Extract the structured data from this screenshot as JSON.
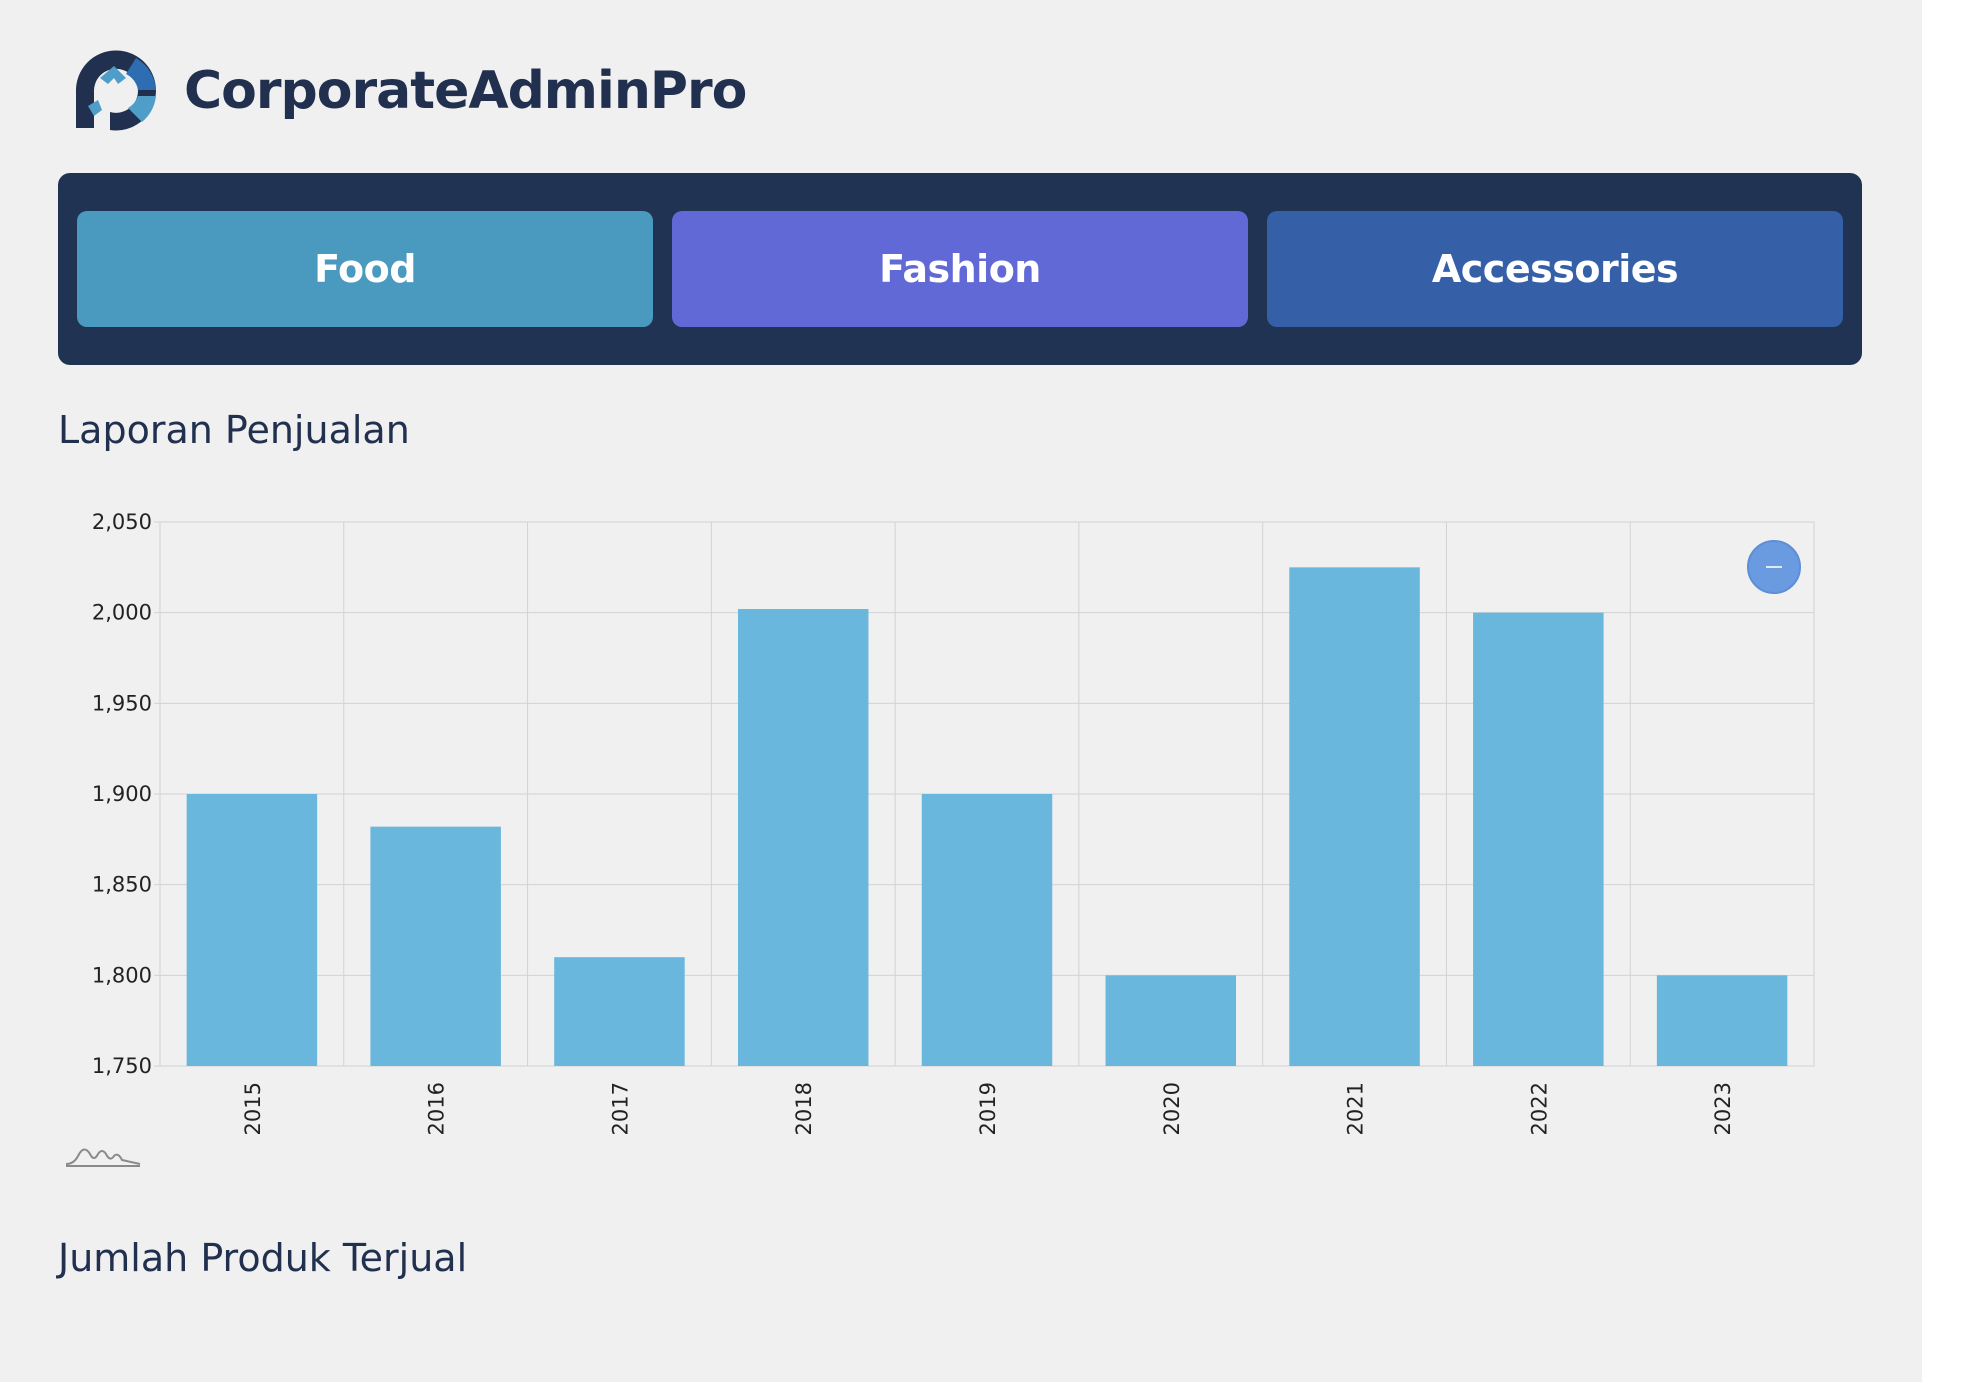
{
  "app": {
    "brand_name": "CorporateAdminPro",
    "colors": {
      "brand_dark": "#22304f",
      "brand_blue": "#2f6db3",
      "brand_light": "#4e9ec9"
    }
  },
  "categories": [
    {
      "label": "Food",
      "color": "#4a9ac0"
    },
    {
      "label": "Fashion",
      "color": "#6169d6"
    },
    {
      "label": "Accessories",
      "color": "#3560a8"
    }
  ],
  "sections": {
    "sales_report_title": "Laporan Penjualan",
    "products_sold_title": "Jumlah Produk Terjual"
  },
  "chart_data": {
    "type": "bar",
    "categories": [
      "2015",
      "2016",
      "2017",
      "2018",
      "2019",
      "2020",
      "2021",
      "2022",
      "2023"
    ],
    "values": [
      1900,
      1882,
      1810,
      2002,
      1900,
      1800,
      2025,
      2000,
      1800
    ],
    "ylim": [
      1750,
      2050
    ],
    "yticks": [
      1750,
      1800,
      1850,
      1900,
      1950,
      2000,
      2050
    ],
    "ytick_labels": [
      "1,750",
      "1,800",
      "1,850",
      "1,900",
      "1,950",
      "2,000",
      "2,050"
    ],
    "bar_color": "#69b7dd",
    "grid": true,
    "xtick_rotation": "vertical",
    "legend": "none"
  },
  "controls": {
    "zoom_button_icon": "minus-icon",
    "chart_type_icon": "sparkline-icon"
  }
}
